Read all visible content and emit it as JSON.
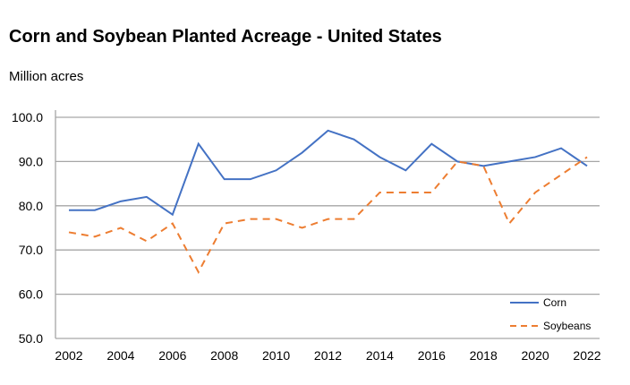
{
  "chart_data": {
    "type": "line",
    "title": "Corn and Soybean Planted Acreage - United States",
    "ylabel": "Million acres",
    "xlabel": "",
    "x": [
      2002,
      2003,
      2004,
      2005,
      2006,
      2007,
      2008,
      2009,
      2010,
      2011,
      2012,
      2013,
      2014,
      2015,
      2016,
      2017,
      2018,
      2019,
      2020,
      2021,
      2022
    ],
    "xticks": [
      "2002",
      "2004",
      "2006",
      "2008",
      "2010",
      "2012",
      "2014",
      "2016",
      "2018",
      "2020",
      "2022"
    ],
    "yticks": [
      "50.0",
      "60.0",
      "70.0",
      "80.0",
      "90.0",
      "100.0"
    ],
    "ylim": [
      50,
      100
    ],
    "grid": true,
    "legend": "bottom-right",
    "series": [
      {
        "name": "Corn",
        "color": "#4472c4",
        "style": "solid",
        "values": [
          79,
          79,
          81,
          82,
          78,
          94,
          86,
          86,
          88,
          92,
          97,
          95,
          91,
          88,
          94,
          90,
          89,
          90,
          91,
          93,
          89
        ]
      },
      {
        "name": "Soybeans",
        "color": "#ed7d31",
        "style": "dashed",
        "values": [
          74,
          73,
          75,
          72,
          76,
          65,
          76,
          77,
          77,
          75,
          77,
          77,
          83,
          83,
          83,
          90,
          89,
          76,
          83,
          87,
          91
        ]
      }
    ]
  }
}
